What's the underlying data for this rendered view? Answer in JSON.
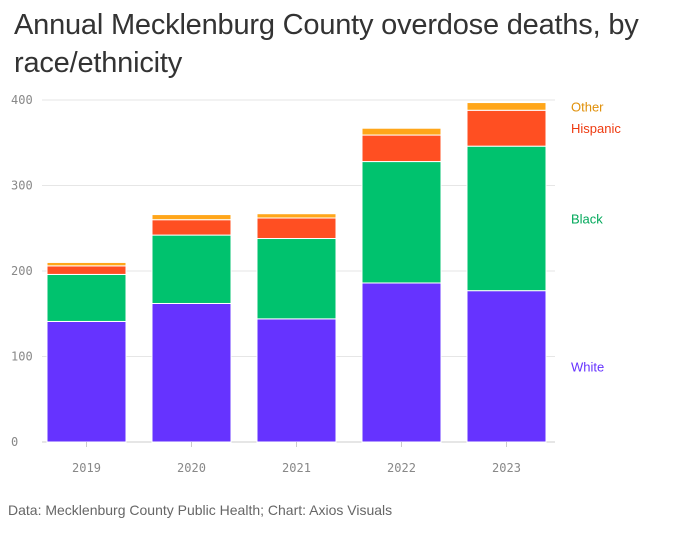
{
  "chart_data": {
    "type": "bar",
    "stacked": true,
    "title": "Annual Mecklenburg County overdose deaths, by race/ethnicity",
    "source": "Data: Mecklenburg County Public Health; Chart: Axios Visuals",
    "categories": [
      "2019",
      "2020",
      "2021",
      "2022",
      "2023"
    ],
    "ylim": [
      0,
      400
    ],
    "yticks": [
      0,
      100,
      200,
      300,
      400
    ],
    "grid": true,
    "xlabel": "",
    "ylabel": "",
    "series": [
      {
        "name": "White",
        "color": "#6633ff",
        "values": [
          141,
          162,
          144,
          186,
          177
        ]
      },
      {
        "name": "Black",
        "color": "#00c26e",
        "values": [
          55,
          80,
          94,
          142,
          169
        ]
      },
      {
        "name": "Hispanic",
        "color": "#ff4f22",
        "values": [
          10,
          18,
          24,
          31,
          42
        ]
      },
      {
        "name": "Other",
        "color": "#ffa61a",
        "values": [
          4,
          6,
          5,
          8,
          9
        ]
      }
    ],
    "legend_colors": {
      "White": "#6633ff",
      "Black": "#00a85a",
      "Hispanic": "#ee3a10",
      "Other": "#e0900a"
    }
  }
}
